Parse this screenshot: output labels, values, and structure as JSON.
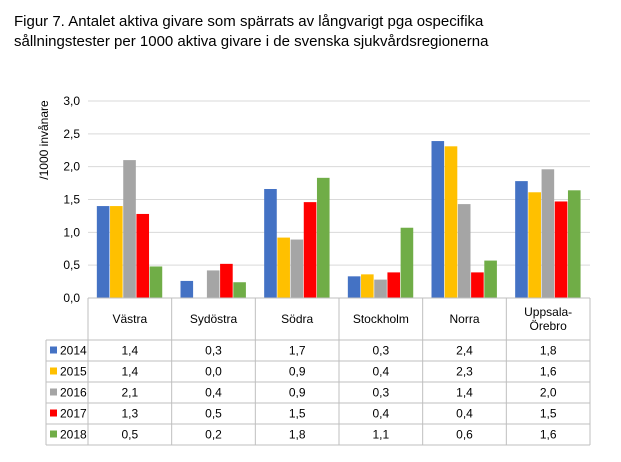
{
  "title_line1": "Figur 7. Antalet aktiva givare som spärrats av långvarigt pga ospecifika",
  "title_line2": "sållningstester per 1000 aktiva givare i de svenska sjukvårdsregionerna",
  "chart_data": {
    "type": "bar",
    "title": "Figur 7. Antalet aktiva givare som spärrats av långvarigt pga ospecifika sållningstester per 1000 aktiva givare i de svenska sjukvårdsregionerna",
    "ylabel": "/1000 invånare",
    "xlabel": "",
    "ylim": [
      0,
      3.0
    ],
    "yticks": [
      "0,0",
      "0,5",
      "1,0",
      "1,5",
      "2,0",
      "2,5",
      "3,0"
    ],
    "grid": true,
    "legend": "data-table",
    "categories": [
      "Västra",
      "Sydöstra",
      "Södra",
      "Stockholm",
      "Norra",
      "Uppsala-\nÖrebro"
    ],
    "series": [
      {
        "name": "2014",
        "color": "#4472C4",
        "values": [
          1.4,
          0.26,
          1.66,
          0.33,
          2.39,
          1.78
        ],
        "labels": [
          "1,4",
          "0,3",
          "1,7",
          "0,3",
          "2,4",
          "1,8"
        ]
      },
      {
        "name": "2015",
        "color": "#FFC000",
        "values": [
          1.4,
          0.0,
          0.92,
          0.36,
          2.31,
          1.61
        ],
        "labels": [
          "1,4",
          "0,0",
          "0,9",
          "0,4",
          "2,3",
          "1,6"
        ]
      },
      {
        "name": "2016",
        "color": "#A5A5A5",
        "values": [
          2.1,
          0.42,
          0.89,
          0.28,
          1.43,
          1.96
        ],
        "labels": [
          "2,1",
          "0,4",
          "0,9",
          "0,3",
          "1,4",
          "2,0"
        ]
      },
      {
        "name": "2017",
        "color": "#FF0000",
        "values": [
          1.28,
          0.52,
          1.46,
          0.39,
          0.39,
          1.47
        ],
        "labels": [
          "1,3",
          "0,5",
          "1,5",
          "0,4",
          "0,4",
          "1,5"
        ]
      },
      {
        "name": "2018",
        "color": "#70AD47",
        "values": [
          0.48,
          0.24,
          1.83,
          1.07,
          0.57,
          1.64
        ],
        "labels": [
          "0,5",
          "0,2",
          "1,8",
          "1,1",
          "0,6",
          "1,6"
        ]
      }
    ]
  }
}
